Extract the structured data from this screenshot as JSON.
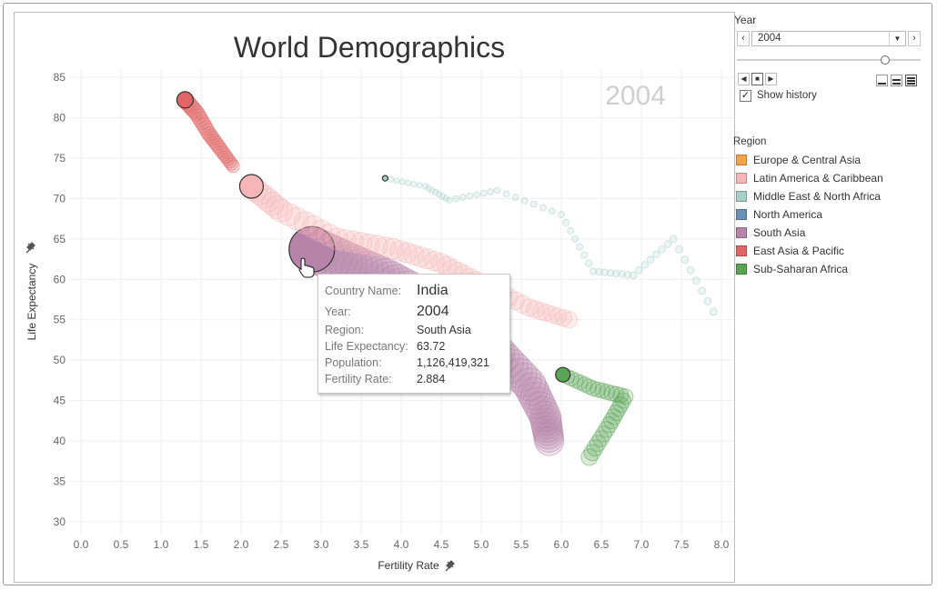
{
  "chart": {
    "title": "World Demographics",
    "year_watermark": "2004",
    "xlabel": "Fertility Rate",
    "ylabel": "Life Expectancy",
    "x_ticks": [
      "0.0",
      "0.5",
      "1.0",
      "1.5",
      "2.0",
      "2.5",
      "3.0",
      "3.5",
      "4.0",
      "4.5",
      "5.0",
      "5.5",
      "6.0",
      "6.5",
      "7.0",
      "7.5",
      "8.0"
    ],
    "y_ticks": [
      "85",
      "80",
      "75",
      "70",
      "65",
      "60",
      "55",
      "50",
      "45",
      "40",
      "35",
      "30"
    ]
  },
  "tooltip": {
    "country_key": "Country Name:",
    "country_val": "India",
    "year_key": "Year:",
    "year_val": "2004",
    "region_key": "Region:",
    "region_val": "South Asia",
    "life_key": "Life Expectancy:",
    "life_val": "63.72",
    "pop_key": "Population:",
    "pop_val": "1,126,419,321",
    "fert_key": "Fertility Rate:",
    "fert_val": "2.884"
  },
  "year_filter": {
    "label": "Year",
    "value": "2004",
    "prev_symbol": "‹",
    "next_symbol": "›",
    "dropdown_symbol": "▼",
    "show_history_label": "Show history",
    "show_history_checked": true,
    "slider_position": 0.8
  },
  "legend": {
    "title": "Region",
    "items": [
      {
        "label": "Europe & Central Asia",
        "color": "#f5a34a"
      },
      {
        "label": "Latin America & Caribbean",
        "color": "#f6b6b8"
      },
      {
        "label": "Middle East & North Africa",
        "color": "#a8d0c8"
      },
      {
        "label": "North America",
        "color": "#6b8fb5"
      },
      {
        "label": "South Asia",
        "color": "#b783a9"
      },
      {
        "label": "East Asia & Pacific",
        "color": "#e06666"
      },
      {
        "label": "Sub-Saharan Africa",
        "color": "#5aa455"
      }
    ]
  },
  "chart_data": {
    "type": "scatter",
    "title": "World Demographics",
    "xlabel": "Fertility Rate",
    "ylabel": "Life Expectancy",
    "xlim": [
      0,
      8
    ],
    "ylim": [
      30,
      85
    ],
    "grid": true,
    "legend_position": "right",
    "highlighted_point": {
      "name": "India",
      "region": "South Asia",
      "year": 2004,
      "x": 2.884,
      "y": 63.72,
      "population": 1126419321
    },
    "series": [
      {
        "name": "South Asia",
        "color": "#b783a9",
        "x": [
          2.884,
          3.3,
          3.8,
          4.3,
          4.8,
          5.2,
          5.6,
          5.8,
          5.85
        ],
        "y": [
          63.72,
          62.0,
          60.0,
          57.5,
          54.5,
          51.0,
          47.0,
          43.0,
          40.0
        ]
      },
      {
        "name": "Latin America & Caribbean",
        "color": "#f6b6b8",
        "x": [
          2.13,
          2.5,
          3.2,
          3.9,
          4.5,
          5.0,
          5.6,
          6.1
        ],
        "y": [
          71.5,
          68.5,
          65.0,
          63.8,
          62.0,
          59.5,
          56.5,
          55.0
        ]
      },
      {
        "name": "East Asia & Pacific",
        "color": "#e06666",
        "x": [
          1.3,
          1.45,
          1.6,
          1.75,
          1.9
        ],
        "y": [
          82.2,
          80.5,
          78.0,
          76.0,
          74.0
        ]
      },
      {
        "name": "Middle East & North Africa",
        "color": "#a8d0c8",
        "x": [
          3.8,
          4.3,
          4.6,
          5.2,
          6.0,
          6.4,
          6.9,
          7.4,
          7.9
        ],
        "y": [
          72.5,
          71.5,
          69.8,
          71.0,
          68.0,
          61.0,
          60.5,
          65.0,
          56.0
        ]
      },
      {
        "name": "Sub-Saharan Africa",
        "color": "#5aa455",
        "x": [
          6.02,
          6.4,
          6.8,
          6.6,
          6.35
        ],
        "y": [
          48.2,
          46.5,
          45.5,
          42.0,
          38.0
        ]
      }
    ]
  }
}
